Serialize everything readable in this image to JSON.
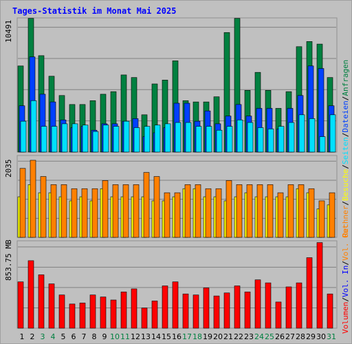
{
  "chart_data": [
    {
      "type": "bar",
      "title": "Tages-Statistik im Monat Mai 2025",
      "panel": "requests",
      "categories": [
        "1",
        "2",
        "3",
        "4",
        "5",
        "6",
        "7",
        "8",
        "9",
        "10",
        "11",
        "12",
        "13",
        "14",
        "15",
        "16",
        "17",
        "18",
        "19",
        "20",
        "21",
        "22",
        "23",
        "24",
        "25",
        "26",
        "27",
        "28",
        "29",
        "30",
        "31"
      ],
      "weekend_days": [
        3,
        4,
        10,
        11,
        17,
        18,
        24,
        25,
        31
      ],
      "ytick_label": "10491",
      "ylim": [
        0,
        10491
      ],
      "right_labels": [
        "Anfragen",
        "/",
        "Dateien",
        "/",
        "Seiten",
        "/",
        "Besuche",
        "/",
        "Rechner"
      ],
      "series": [
        {
          "name": "Anfragen",
          "color": "#008040",
          "values": [
            6700,
            10400,
            7500,
            5900,
            4400,
            3700,
            3700,
            4000,
            4500,
            4700,
            6000,
            5800,
            2900,
            5300,
            5600,
            7100,
            4000,
            3900,
            3900,
            4300,
            9300,
            10400,
            4800,
            6200,
            4800,
            3400,
            4700,
            8200,
            8600,
            8400,
            5800
          ]
        },
        {
          "name": "Dateien",
          "color": "#0040ff",
          "values": [
            3600,
            7400,
            4500,
            3900,
            2500,
            1900,
            2000,
            1700,
            2200,
            2200,
            2400,
            2600,
            1200,
            1500,
            1900,
            3800,
            3800,
            2400,
            3200,
            2200,
            2800,
            3700,
            2800,
            3400,
            3400,
            1800,
            3400,
            4400,
            6700,
            6500,
            3600
          ]
        },
        {
          "name": "Seiten",
          "color": "#00e0ff",
          "values": [
            2400,
            4000,
            2000,
            2000,
            2200,
            2200,
            2100,
            1600,
            2100,
            2000,
            2400,
            1900,
            2000,
            2100,
            2200,
            2300,
            2300,
            2000,
            2000,
            1700,
            2000,
            2500,
            2300,
            1900,
            1800,
            2000,
            2300,
            2900,
            2600,
            1200,
            2900
          ]
        }
      ]
    },
    {
      "type": "bar",
      "panel": "visits",
      "ytick_label": "2035",
      "ylim": [
        0,
        2035
      ],
      "series": [
        {
          "name": "Besuche",
          "color": "#ffff00",
          "values": [
            1000,
            1300,
            1100,
            1100,
            1000,
            900,
            1000,
            900,
            1200,
            1000,
            1000,
            1000,
            1000,
            900,
            900,
            1000,
            1200,
            1200,
            1000,
            1000,
            900,
            1000,
            1100,
            1000,
            1000,
            1000,
            1000,
            1200,
            1100,
            700,
            800
          ]
        },
        {
          "name": "Rechner",
          "color": "#ff8000",
          "values": [
            1700,
            1900,
            1500,
            1300,
            1300,
            1200,
            1200,
            1200,
            1400,
            1300,
            1300,
            1300,
            1600,
            1500,
            1100,
            1100,
            1300,
            1300,
            1200,
            1200,
            1400,
            1300,
            1300,
            1300,
            1300,
            1100,
            1300,
            1300,
            1200,
            900,
            1100
          ]
        }
      ]
    },
    {
      "type": "bar",
      "panel": "volume",
      "ytick_label": "853.75 MB",
      "ylim": [
        0,
        853.75
      ],
      "right_labels": [
        "Volumen",
        "/",
        "Vol. In",
        "/",
        "Vol. Out"
      ],
      "series": [
        {
          "name": "Volumen",
          "color": "#ff0000",
          "values": [
            460,
            670,
            530,
            440,
            330,
            240,
            250,
            330,
            310,
            280,
            360,
            390,
            200,
            270,
            420,
            460,
            340,
            330,
            400,
            320,
            350,
            420,
            360,
            480,
            450,
            260,
            410,
            450,
            700,
            850,
            340
          ]
        }
      ]
    }
  ],
  "colors": {
    "background": "#c0c0c0",
    "title": "#0000ff",
    "weekend": "#008040",
    "weekday": "#000000",
    "gridline": "#808080"
  }
}
